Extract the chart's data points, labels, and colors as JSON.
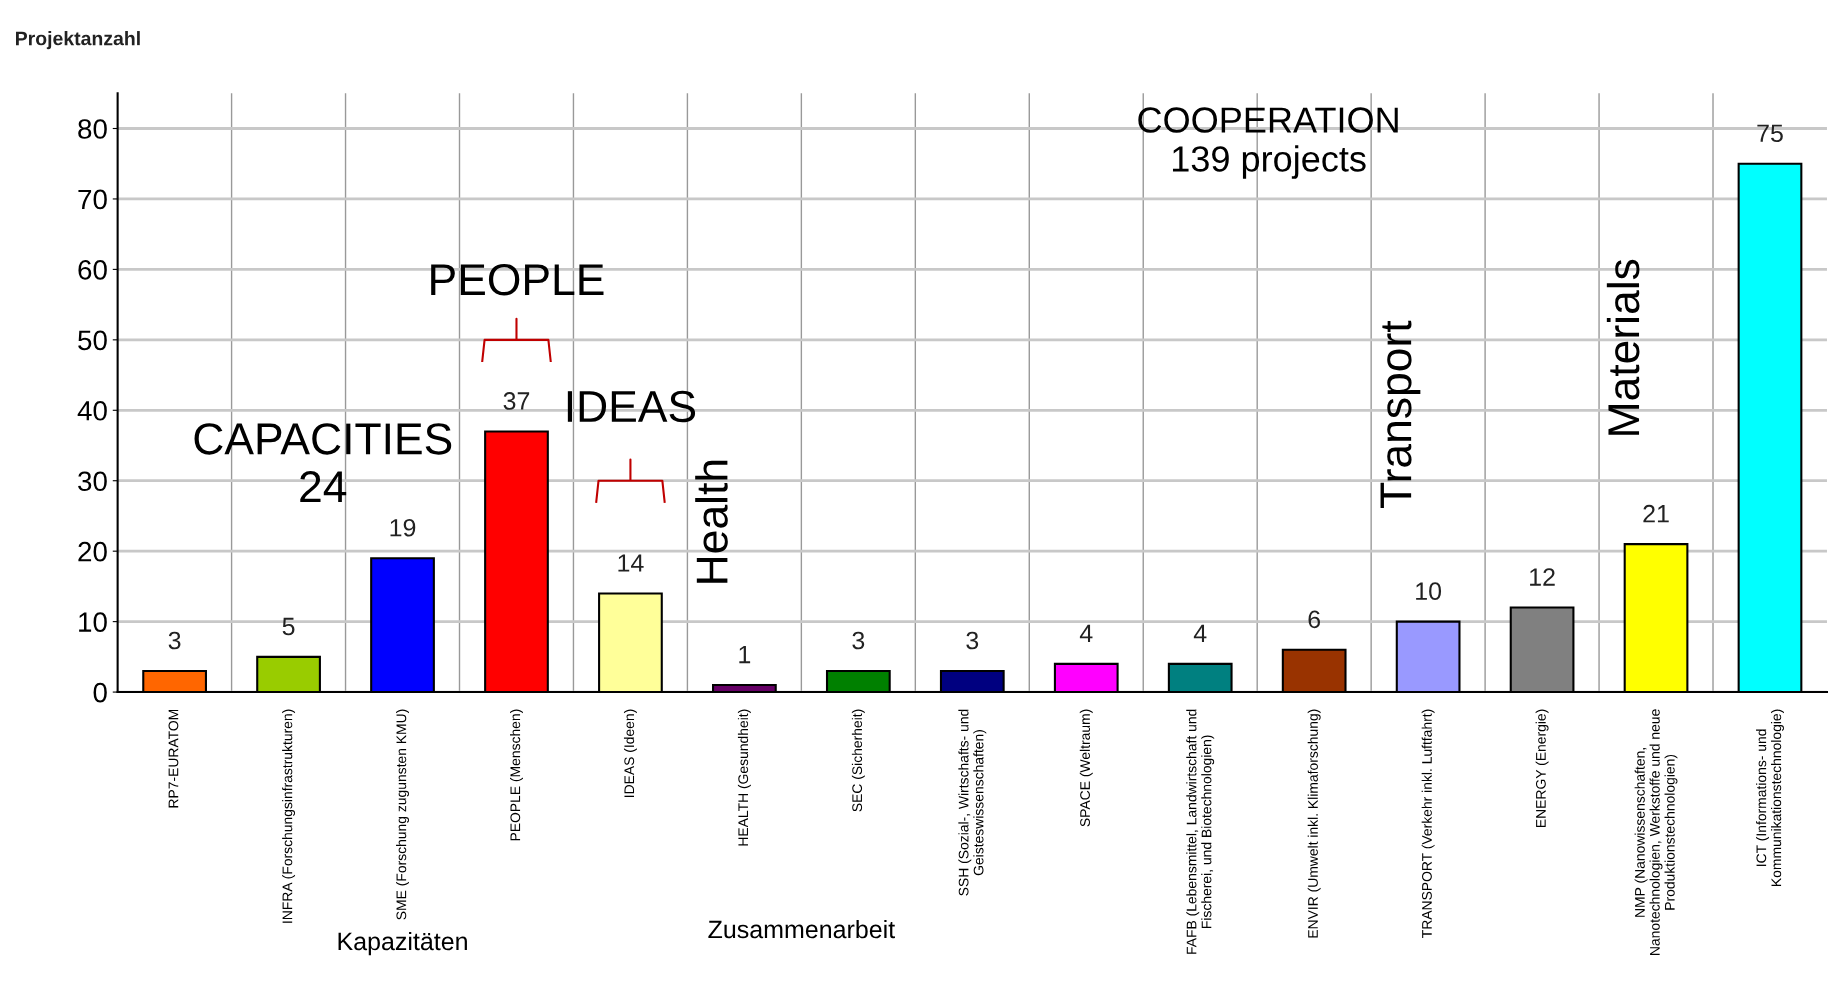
{
  "chart_data": {
    "type": "bar",
    "ylabel": "Projektanzahl",
    "categories": [
      "RP7-EURATOM",
      "INFRA (Forschungsinfrastrukturen)",
      "SME (Forschung zugunsten KMU)",
      "PEOPLE (Menschen)",
      "IDEAS (Ideen)",
      "HEALTH (Gesundheit)",
      "SEC (Sicherheit)",
      "SSH (Sozial-, Wirtschafts- und\nGeisteswissenschaften)",
      "SPACE (Weltraum)",
      "FAFB (Lebensmittel, Landwirtschaft und\nFischerei, und Biotechnologien)",
      "ENVIR (Umwelt inkl. Klimaforschung)",
      "TRANSPORT (Verkehr inkl. Luftfahrt)",
      "ENERGY (Energie)",
      "NMP (Nanowissenschaften,\nNanotechnologien, Werkstoffe und neue\nProduktionstechnologien)",
      "ICT (Informations- und\nKommunikationstechnologie)"
    ],
    "values": [
      3,
      5,
      19,
      37,
      14,
      1,
      3,
      3,
      4,
      4,
      6,
      10,
      12,
      21,
      75
    ],
    "colors": [
      "#ff6600",
      "#99cc00",
      "#0000ff",
      "#ff0000",
      "#ffff99",
      "#660066",
      "#008000",
      "#000080",
      "#ff00ff",
      "#008080",
      "#993300",
      "#9999ff",
      "#808080",
      "#ffff00",
      "#00ffff"
    ],
    "ylim": [
      0,
      85
    ],
    "yticks": [
      0,
      10,
      20,
      30,
      40,
      50,
      60,
      70,
      80
    ],
    "grid": true,
    "data_labels": true,
    "annotations": [
      "PEOPLE",
      "IDEAS",
      "Health",
      "Transport",
      "Materials",
      "CAPACITIES\n24",
      "COOPERATION\n139 projects",
      "Kapazitäten",
      "Zusammenarbeit"
    ]
  }
}
